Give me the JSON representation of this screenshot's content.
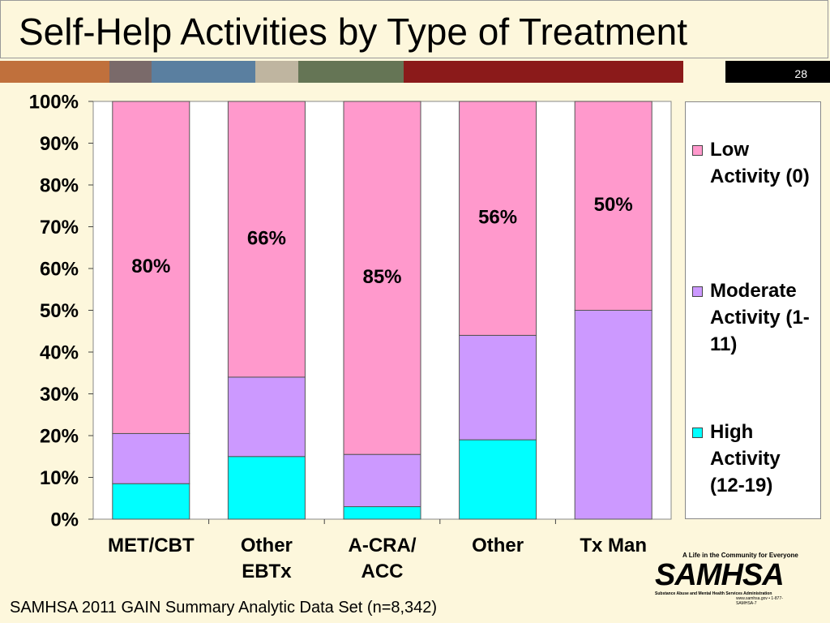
{
  "header": {
    "title": "Self-Help Activities by Type of Treatment",
    "slide_number": "28"
  },
  "chart_data": {
    "type": "stacked_bar",
    "categories": [
      "MET/CBT",
      "Other\nEBTx",
      "A-CRA/\nACC",
      "Other",
      "Tx Man"
    ],
    "series": [
      {
        "name": "High Activity (12-19)",
        "color": "#00ffff",
        "values": [
          8.5,
          15,
          3,
          19,
          0
        ]
      },
      {
        "name": "Moderate Activity (1-11)",
        "color": "#cc99ff",
        "values": [
          12,
          19,
          12.5,
          25,
          50
        ]
      },
      {
        "name": "Low Activity (0)",
        "color": "#ff99cc",
        "values": [
          79.5,
          66,
          84.5,
          56,
          50
        ],
        "value_labels": [
          "80%",
          "66%",
          "85%",
          "56%",
          "50%"
        ]
      }
    ],
    "ylim": [
      0,
      100
    ],
    "yticks": [
      {
        "value": 0,
        "label": "0%"
      },
      {
        "value": 10,
        "label": "10%"
      },
      {
        "value": 20,
        "label": "20%"
      },
      {
        "value": 30,
        "label": "30%"
      },
      {
        "value": 40,
        "label": "40%"
      },
      {
        "value": 50,
        "label": "50%"
      },
      {
        "value": 60,
        "label": "60%"
      },
      {
        "value": 70,
        "label": "70%"
      },
      {
        "value": 80,
        "label": "80%"
      },
      {
        "value": 90,
        "label": "90%"
      },
      {
        "value": 100,
        "label": "100%"
      }
    ],
    "legend": "right"
  },
  "footer": {
    "source": "SAMHSA 2011 GAIN Summary Analytic Data Set (n=8,342)"
  },
  "logo": {
    "tagline": "A Life in the Community for Everyone",
    "name": "SAMHSA",
    "full_name": "Substance Abuse and Mental Health Services Administration",
    "contact": "www.samhsa.gov • 1-877-SAMHSA-7"
  }
}
